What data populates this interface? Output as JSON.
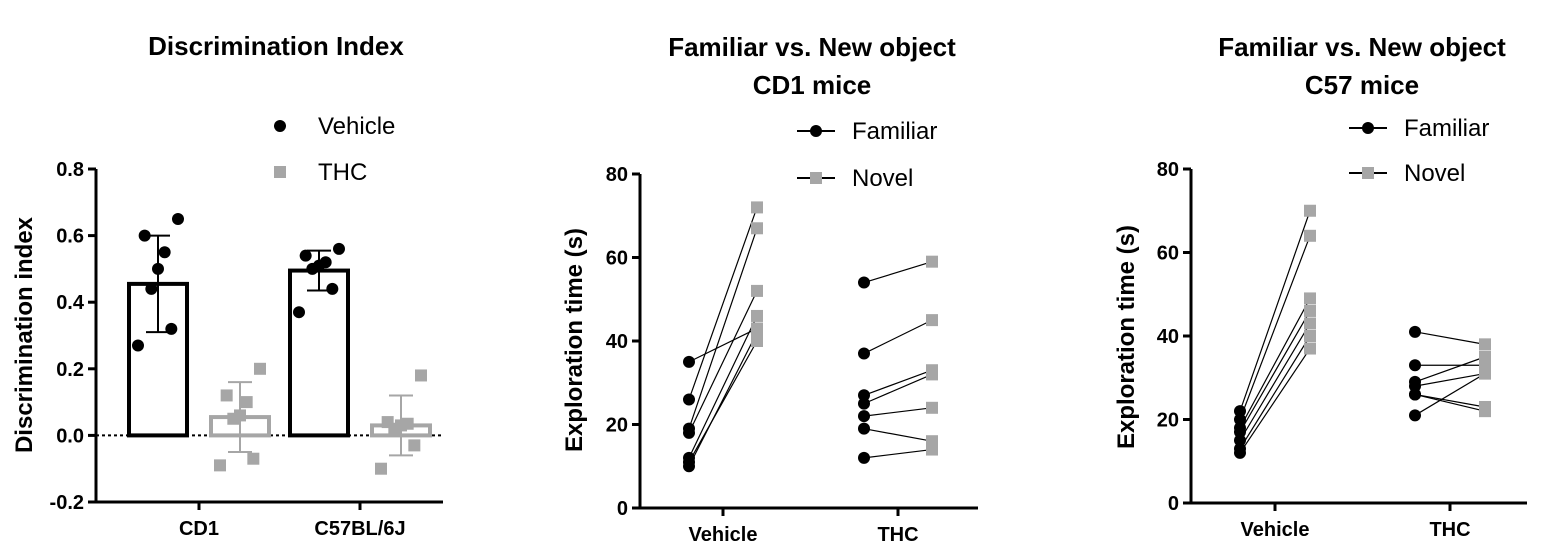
{
  "colors": {
    "vehicle": "#000000",
    "thc": "#a6a6a6",
    "axis": "#000000"
  },
  "chart_data": [
    {
      "type": "bar",
      "title": "Discrimination Index",
      "ylabel": "Discrimination index",
      "xlabel": "",
      "categories": [
        "CD1",
        "C57BL/6J"
      ],
      "ylim": [
        -0.2,
        0.8
      ],
      "yticks": [
        "0.8",
        "0.6",
        "0.4",
        "0.2",
        "0.0",
        "-0.2"
      ],
      "yticks_values": [
        0.8,
        0.6,
        0.4,
        0.2,
        0.0,
        -0.2
      ],
      "reference_line": 0.0,
      "legend": [
        "Vehicle",
        "THC"
      ],
      "legend_position": "top-right",
      "series": [
        {
          "name": "Vehicle",
          "bars": [
            {
              "mean": 0.455,
              "err_low": 0.31,
              "err_high": 0.6,
              "points": [
                0.65,
                0.6,
                0.55,
                0.5,
                0.44,
                0.32,
                0.27
              ]
            },
            {
              "mean": 0.495,
              "err_low": 0.435,
              "err_high": 0.555,
              "points": [
                0.56,
                0.54,
                0.52,
                0.51,
                0.5,
                0.44,
                0.37
              ]
            }
          ]
        },
        {
          "name": "THC",
          "bars": [
            {
              "mean": 0.055,
              "err_low": -0.05,
              "err_high": 0.16,
              "points": [
                0.2,
                0.12,
                0.1,
                0.06,
                0.05,
                -0.07,
                -0.09
              ]
            },
            {
              "mean": 0.03,
              "err_low": -0.06,
              "err_high": 0.12,
              "points": [
                0.18,
                0.04,
                0.035,
                0.03,
                0.02,
                -0.03,
                -0.1
              ]
            }
          ]
        }
      ]
    },
    {
      "type": "scatter",
      "subtype": "paired",
      "title": "Familiar vs. New object",
      "subtitle": "CD1 mice",
      "ylabel": "Exploration time (s)",
      "categories": [
        "Vehicle",
        "THC"
      ],
      "ylim": [
        0,
        80
      ],
      "yticks": [
        "80",
        "60",
        "40",
        "20",
        "0"
      ],
      "yticks_values": [
        80,
        60,
        40,
        20,
        0
      ],
      "legend": [
        "Familiar",
        "Novel"
      ],
      "legend_position": "top-right",
      "pairs": [
        {
          "group": "Vehicle",
          "familiar": [
            35,
            26,
            19,
            18,
            12,
            11,
            10
          ],
          "novel": [
            43,
            72,
            67,
            52,
            46,
            40,
            42
          ]
        },
        {
          "group": "THC",
          "familiar": [
            54,
            37,
            27,
            25,
            22,
            19,
            12
          ],
          "novel": [
            59,
            45,
            33,
            32,
            24,
            16,
            14
          ]
        }
      ]
    },
    {
      "type": "scatter",
      "subtype": "paired",
      "title": "Familiar vs. New object",
      "subtitle": "C57 mice",
      "ylabel": "Exploration time (s)",
      "categories": [
        "Vehicle",
        "THC"
      ],
      "ylim": [
        0,
        80
      ],
      "yticks": [
        "80",
        "60",
        "40",
        "20",
        "0"
      ],
      "yticks_values": [
        80,
        60,
        40,
        20,
        0
      ],
      "legend": [
        "Familiar",
        "Novel"
      ],
      "legend_position": "top-right",
      "pairs": [
        {
          "group": "Vehicle",
          "familiar": [
            22,
            20,
            18,
            17,
            15,
            13,
            12
          ],
          "novel": [
            70,
            64,
            49,
            46,
            43,
            40,
            37
          ]
        },
        {
          "group": "THC",
          "familiar": [
            41,
            33,
            29,
            28,
            26,
            26,
            21
          ],
          "novel": [
            38,
            33,
            35,
            31,
            22,
            23,
            31
          ]
        }
      ]
    }
  ]
}
